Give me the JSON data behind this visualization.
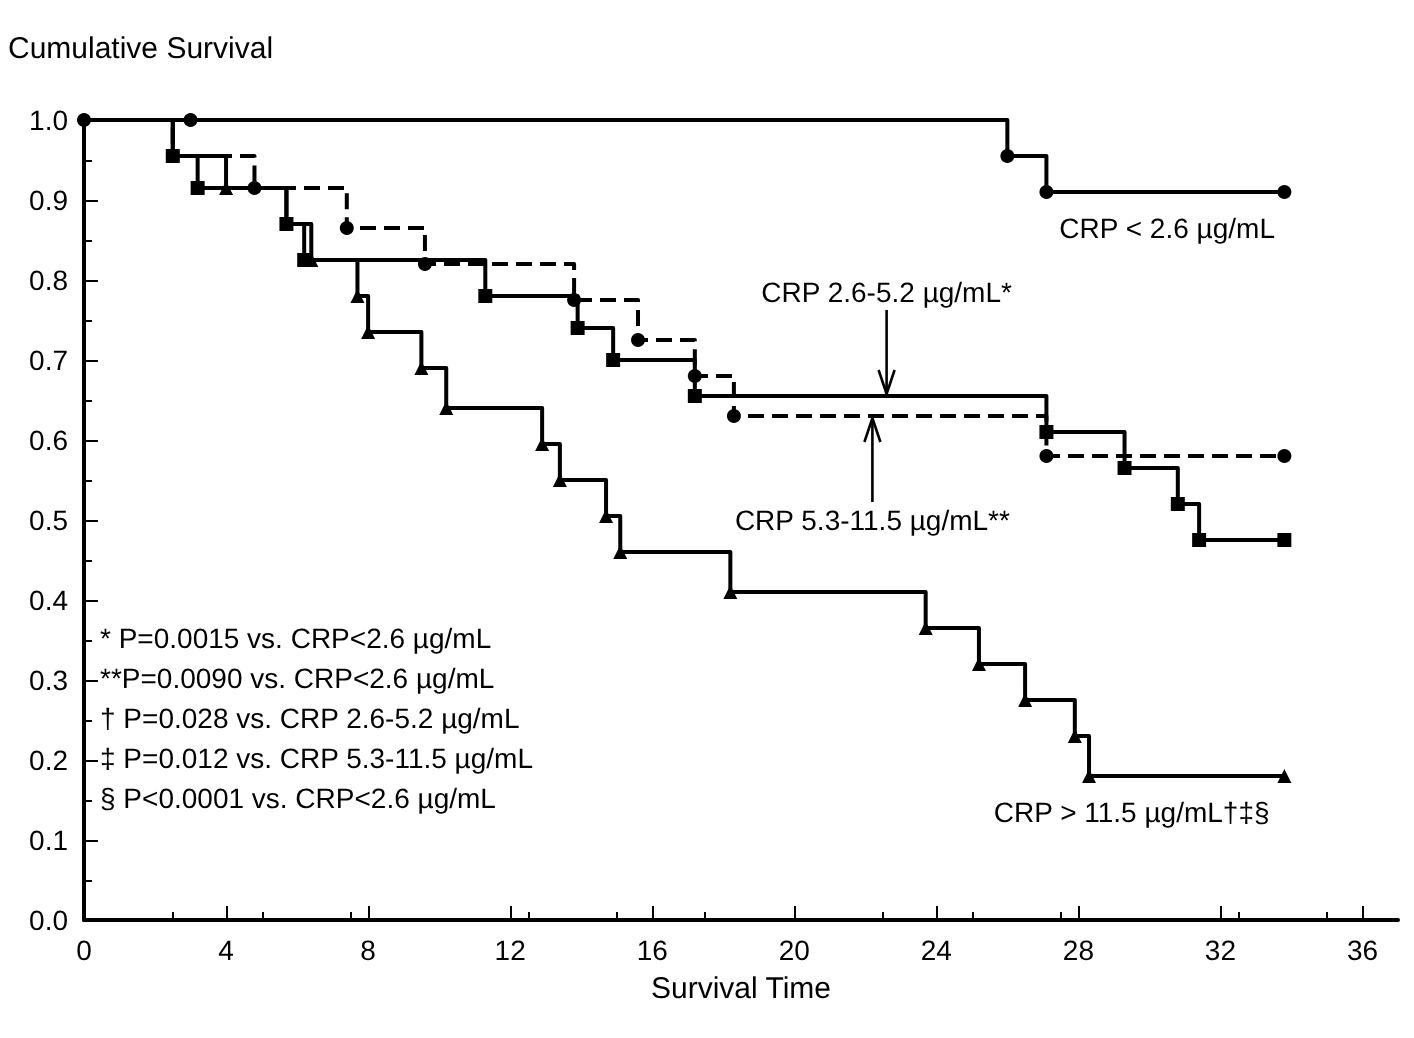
{
  "chart_data": {
    "type": "step",
    "ylabel": "Cumulative Survival",
    "xlabel": "Survival Time",
    "series": [
      {
        "color": "#000000",
        "marker": "circle",
        "line_style": "solid",
        "x": [
          0,
          3,
          26,
          27.1,
          33.8
        ],
        "values": [
          1,
          1,
          0.955,
          0.91,
          0.91
        ]
      },
      {
        "color": "#000000",
        "marker": "square",
        "line_style": "solid",
        "x": [
          0,
          2.5,
          3.2,
          5.7,
          6.2,
          11.3,
          13.9,
          14.9,
          17.2,
          27.1,
          29.3,
          30.8,
          31.4,
          33.8
        ],
        "values": [
          1,
          0.955,
          0.915,
          0.87,
          0.825,
          0.78,
          0.74,
          0.7,
          0.655,
          0.61,
          0.565,
          0.52,
          0.475,
          0.475
        ]
      },
      {
        "color": "#000000",
        "marker": "circle",
        "line_style": "dashed",
        "x": [
          0,
          2.5,
          4.8,
          7.4,
          9.6,
          13.8,
          15.6,
          17.2,
          18.3,
          27.1,
          33.8
        ],
        "values": [
          1,
          0.955,
          0.915,
          0.865,
          0.82,
          0.775,
          0.725,
          0.68,
          0.63,
          0.58,
          0.58
        ]
      },
      {
        "color": "#000000",
        "marker": "triangle",
        "line_style": "solid",
        "x": [
          0,
          2.5,
          4.0,
          5.7,
          6.4,
          7.7,
          8.0,
          9.5,
          10.2,
          12.9,
          13.4,
          14.7,
          15.1,
          18.2,
          23.7,
          25.2,
          26.5,
          27.9,
          28.3,
          33.8
        ],
        "values": [
          1,
          0.955,
          0.915,
          0.87,
          0.825,
          0.78,
          0.735,
          0.69,
          0.64,
          0.595,
          0.55,
          0.505,
          0.46,
          0.41,
          0.365,
          0.32,
          0.275,
          0.23,
          0.18,
          0.18
        ]
      }
    ],
    "annotations": [
      {
        "text": "CRP < 2.6 µg/mL",
        "x": 30.5,
        "y": 0.91
      },
      {
        "text": "CRP 2.6-5.2 µg/mL*",
        "x": 22.6,
        "y": 0.655
      },
      {
        "text": "CRP 5.3-11.5 µg/mL**",
        "x": 22.2,
        "y": 0.63
      },
      {
        "text": "CRP > 11.5 µg/mL†‡§",
        "x": 29.5,
        "y": 0.18
      },
      "* P=0.0015 vs. CRP<2.6 µg/mL",
      "**P=0.0090 vs. CRP<2.6 µg/mL",
      "† P=0.028 vs. CRP 2.6-5.2 µg/mL",
      "‡ P=0.012 vs. CRP 5.3-11.5 µg/mL",
      "§ P<0.0001 vs. CRP<2.6 µg/mL"
    ],
    "xlim": [
      0,
      37
    ],
    "xticks": [
      0,
      4,
      8,
      12,
      16,
      20,
      24,
      28,
      32,
      36
    ],
    "ylim": [
      0,
      1
    ],
    "yticks": [
      {
        "value": 0,
        "label": "0.0"
      },
      0.1,
      0.2,
      0.3,
      0.4,
      0.5,
      0.6,
      0.7,
      0.8,
      0.9,
      {
        "value": 1,
        "label": "1.0"
      }
    ],
    "grid": false
  }
}
